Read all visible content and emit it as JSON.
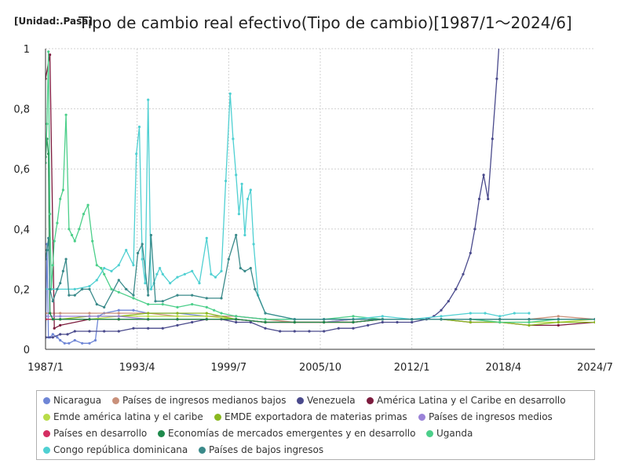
{
  "chart_data": {
    "type": "line",
    "unit_label": "[Unidad:.Pasa]",
    "title": "Tipo de cambio real efectivo(Tipo de cambio)[1987/1～2024/6]",
    "xlabel": "",
    "ylabel": "",
    "x_range": [
      1987.0,
      2024.5
    ],
    "ylim": [
      0,
      1
    ],
    "x_tick_labels": [
      "1987/1",
      "1993/4",
      "1999/7",
      "2005/10",
      "2012/1",
      "2018/4",
      "2024/7"
    ],
    "y_tick_labels": [
      "0",
      "0,2",
      "0,4",
      "0,6",
      "0,8",
      "1"
    ],
    "grid": true,
    "legend_position": "bottom",
    "series": [
      {
        "name": "Nicaragua",
        "color": "#6f86d6",
        "x": [
          1987.0,
          1987.1,
          1987.2,
          1987.3,
          1987.5,
          1987.8,
          1988.0,
          1988.3,
          1988.6,
          1989.0,
          1989.5,
          1990.0,
          1990.4,
          1990.6,
          1991.0,
          1992.0,
          1993.0,
          1994.0,
          1996.0,
          1998.0,
          2000.0,
          2002.0,
          2004.0,
          2006.0,
          2008.0,
          2010.0,
          2012.0,
          2014.0,
          2016.0,
          2018.0,
          2020.0,
          2022.0,
          2024.5
        ],
        "y": [
          0.04,
          0.35,
          0.04,
          0.04,
          0.05,
          0.04,
          0.03,
          0.02,
          0.02,
          0.03,
          0.02,
          0.02,
          0.03,
          0.11,
          0.12,
          0.13,
          0.13,
          0.12,
          0.12,
          0.11,
          0.11,
          0.1,
          0.1,
          0.1,
          0.1,
          0.1,
          0.1,
          0.1,
          0.1,
          0.1,
          0.1,
          0.1,
          0.1
        ]
      },
      {
        "name": "Países de ingresos medianos bajos",
        "color": "#c9907a",
        "x": [
          1987.0,
          1988.0,
          1990.0,
          1992.0,
          1994.0,
          1996.0,
          1998.0,
          2000.0,
          2002.0,
          2004.0,
          2006.0,
          2008.0,
          2010.0,
          2012.0,
          2014.0,
          2016.0,
          2018.0,
          2020.0,
          2022.0,
          2024.5
        ],
        "y": [
          0.12,
          0.12,
          0.12,
          0.12,
          0.12,
          0.11,
          0.11,
          0.11,
          0.1,
          0.09,
          0.09,
          0.09,
          0.1,
          0.1,
          0.1,
          0.1,
          0.1,
          0.1,
          0.11,
          0.1
        ]
      },
      {
        "name": "Venezuela",
        "color": "#4a4a8c",
        "x": [
          1987.0,
          1987.5,
          1988.0,
          1988.5,
          1989.0,
          1990.0,
          1991.0,
          1992.0,
          1993.0,
          1994.0,
          1995.0,
          1996.0,
          1997.0,
          1998.0,
          1999.0,
          2000.0,
          2001.0,
          2002.0,
          2003.0,
          2004.0,
          2005.0,
          2006.0,
          2007.0,
          2008.0,
          2009.0,
          2010.0,
          2011.0,
          2012.0,
          2013.0,
          2013.5,
          2014.0,
          2014.5,
          2015.0,
          2015.5,
          2016.0,
          2016.3,
          2016.6,
          2016.9,
          2017.2,
          2017.5,
          2017.8,
          2018.0
        ],
        "y": [
          0.04,
          0.04,
          0.05,
          0.05,
          0.06,
          0.06,
          0.06,
          0.06,
          0.07,
          0.07,
          0.07,
          0.08,
          0.09,
          0.1,
          0.1,
          0.09,
          0.09,
          0.07,
          0.06,
          0.06,
          0.06,
          0.06,
          0.07,
          0.07,
          0.08,
          0.09,
          0.09,
          0.09,
          0.1,
          0.11,
          0.13,
          0.16,
          0.2,
          0.25,
          0.32,
          0.4,
          0.5,
          0.58,
          0.5,
          0.7,
          0.9,
          1.05
        ]
      },
      {
        "name": "América Latina y el Caribe en desarrollo",
        "color": "#7c1b3d",
        "x": [
          1987.0,
          1987.3,
          1987.6,
          1988.0,
          1990.0,
          1992.0,
          1994.0,
          1996.0,
          1998.0,
          2000.0,
          2002.0,
          2004.0,
          2006.0,
          2008.0,
          2010.0,
          2012.0,
          2014.0,
          2016.0,
          2018.0,
          2020.0,
          2022.0,
          2024.5
        ],
        "y": [
          0.9,
          0.98,
          0.07,
          0.08,
          0.1,
          0.1,
          0.1,
          0.1,
          0.1,
          0.1,
          0.09,
          0.09,
          0.09,
          0.09,
          0.1,
          0.1,
          0.1,
          0.09,
          0.09,
          0.08,
          0.08,
          0.09
        ]
      },
      {
        "name": "Emde américa latina y el caribe",
        "color": "#b8dc48",
        "x": [
          1987.0,
          1988.0,
          1990.0,
          1992.0,
          1994.0,
          1996.0,
          1998.0,
          2000.0,
          2002.0,
          2004.0,
          2006.0,
          2008.0,
          2010.0,
          2012.0,
          2014.0,
          2016.0,
          2018.0,
          2020.0,
          2022.0,
          2024.5
        ],
        "y": [
          0.1,
          0.1,
          0.1,
          0.11,
          0.11,
          0.11,
          0.11,
          0.1,
          0.09,
          0.09,
          0.09,
          0.09,
          0.1,
          0.1,
          0.1,
          0.1,
          0.09,
          0.09,
          0.09,
          0.1
        ]
      },
      {
        "name": "EMDE exportadora de materias primas",
        "color": "#8ab820",
        "x": [
          1987.0,
          1988.0,
          1990.0,
          1992.0,
          1994.0,
          1996.0,
          1998.0,
          2000.0,
          2002.0,
          2004.0,
          2006.0,
          2008.0,
          2010.0,
          2012.0,
          2014.0,
          2016.0,
          2018.0,
          2020.0,
          2022.0,
          2024.5
        ],
        "y": [
          0.1,
          0.1,
          0.11,
          0.11,
          0.12,
          0.12,
          0.12,
          0.1,
          0.09,
          0.09,
          0.09,
          0.1,
          0.1,
          0.1,
          0.1,
          0.09,
          0.09,
          0.08,
          0.09,
          0.09
        ]
      },
      {
        "name": "Países de ingresos medios",
        "color": "#9a82d8",
        "x": [
          1987.0,
          1988.0,
          1990.0,
          1992.0,
          1994.0,
          1996.0,
          1998.0,
          2000.0,
          2002.0,
          2004.0,
          2006.0,
          2008.0,
          2010.0,
          2012.0,
          2014.0,
          2016.0,
          2018.0,
          2020.0,
          2022.0,
          2024.5
        ],
        "y": [
          0.11,
          0.11,
          0.11,
          0.11,
          0.1,
          0.1,
          0.1,
          0.1,
          0.09,
          0.09,
          0.09,
          0.1,
          0.1,
          0.1,
          0.1,
          0.1,
          0.1,
          0.1,
          0.1,
          0.1
        ]
      },
      {
        "name": "Países en desarrollo",
        "color": "#d42e62",
        "x": [
          1987.0,
          1988.0,
          1990.0,
          1992.0,
          1994.0,
          1996.0,
          1998.0,
          2000.0,
          2002.0,
          2004.0,
          2006.0,
          2008.0,
          2010.0,
          2012.0,
          2014.0,
          2016.0,
          2018.0,
          2020.0,
          2022.0,
          2024.5
        ],
        "y": [
          0.1,
          0.1,
          0.1,
          0.1,
          0.1,
          0.1,
          0.1,
          0.1,
          0.09,
          0.09,
          0.09,
          0.09,
          0.1,
          0.1,
          0.1,
          0.1,
          0.1,
          0.1,
          0.1,
          0.1
        ]
      },
      {
        "name": "Economías de mercados emergentes y en desarrollo",
        "color": "#1f8a4c",
        "x": [
          1987.0,
          1987.1,
          1987.2,
          1987.3,
          1987.5,
          1988.0,
          1990.0,
          1992.0,
          1994.0,
          1996.0,
          1998.0,
          2000.0,
          2002.0,
          2004.0,
          2006.0,
          2008.0,
          2010.0,
          2012.0,
          2014.0,
          2016.0,
          2018.0,
          2020.0,
          2022.0,
          2024.5
        ],
        "y": [
          0.64,
          0.7,
          0.65,
          0.12,
          0.1,
          0.1,
          0.1,
          0.1,
          0.1,
          0.1,
          0.1,
          0.1,
          0.09,
          0.09,
          0.09,
          0.09,
          0.1,
          0.1,
          0.1,
          0.1,
          0.1,
          0.1,
          0.1,
          0.1
        ]
      },
      {
        "name": "Uganda",
        "color": "#4ccf8a",
        "x": [
          1987.0,
          1987.1,
          1987.2,
          1987.3,
          1987.4,
          1987.5,
          1987.6,
          1987.8,
          1988.0,
          1988.2,
          1988.4,
          1988.6,
          1988.8,
          1989.0,
          1989.3,
          1989.6,
          1989.9,
          1990.2,
          1990.5,
          1990.8,
          1991.0,
          1991.5,
          1992.0,
          1993.0,
          1994.0,
          1995.0,
          1996.0,
          1997.0,
          1998.0,
          1998.5,
          1999.0,
          2000.0,
          2002.0,
          2004.0,
          2006.0,
          2008.0,
          2010.0,
          2012.0,
          2014.0,
          2016.0,
          2018.0,
          2020.0,
          2022.0,
          2024.5
        ],
        "y": [
          0.62,
          0.75,
          0.99,
          0.45,
          0.2,
          0.28,
          0.36,
          0.42,
          0.5,
          0.53,
          0.78,
          0.4,
          0.38,
          0.36,
          0.4,
          0.45,
          0.48,
          0.36,
          0.28,
          0.27,
          0.25,
          0.2,
          0.19,
          0.17,
          0.15,
          0.15,
          0.14,
          0.15,
          0.14,
          0.13,
          0.12,
          0.11,
          0.1,
          0.1,
          0.1,
          0.11,
          0.1,
          0.1,
          0.1,
          0.1,
          0.09,
          0.09,
          0.1,
          0.1
        ]
      },
      {
        "name": "Congo república dominicana",
        "color": "#4fd0d2",
        "x": [
          1987.0,
          1989.0,
          1990.0,
          1990.5,
          1991.0,
          1991.5,
          1992.0,
          1992.5,
          1993.0,
          1993.2,
          1993.4,
          1993.6,
          1993.8,
          1994.0,
          1994.2,
          1994.4,
          1994.6,
          1994.8,
          1995.0,
          1995.5,
          1996.0,
          1996.5,
          1997.0,
          1997.5,
          1998.0,
          1998.3,
          1998.6,
          1999.0,
          1999.3,
          1999.6,
          1999.8,
          2000.0,
          2000.2,
          2000.4,
          2000.6,
          2000.8,
          2001.0,
          2001.2,
          2001.5,
          2002.0,
          2004.0,
          2006.0,
          2008.0,
          2010.0,
          2012.0,
          2014.0,
          2016.0,
          2017.0,
          2018.0,
          2019.0,
          2020.0
        ],
        "y": [
          0.2,
          0.2,
          0.21,
          0.23,
          0.27,
          0.26,
          0.28,
          0.33,
          0.28,
          0.65,
          0.74,
          0.3,
          0.22,
          0.83,
          0.2,
          0.22,
          0.25,
          0.27,
          0.25,
          0.22,
          0.24,
          0.25,
          0.26,
          0.22,
          0.37,
          0.25,
          0.24,
          0.26,
          0.56,
          0.85,
          0.7,
          0.58,
          0.45,
          0.55,
          0.38,
          0.5,
          0.53,
          0.35,
          0.18,
          0.12,
          0.1,
          0.1,
          0.1,
          0.11,
          0.1,
          0.11,
          0.12,
          0.12,
          0.11,
          0.12,
          0.12
        ]
      },
      {
        "name": "Países de bajos ingresos",
        "color": "#3a8a8a",
        "x": [
          1987.0,
          1987.1,
          1987.2,
          1987.3,
          1987.5,
          1987.8,
          1988.0,
          1988.2,
          1988.4,
          1988.6,
          1989.0,
          1989.5,
          1990.0,
          1990.5,
          1991.0,
          1992.0,
          1992.5,
          1993.0,
          1993.3,
          1993.6,
          1994.0,
          1994.2,
          1994.5,
          1995.0,
          1996.0,
          1997.0,
          1998.0,
          1999.0,
          1999.5,
          2000.0,
          2000.3,
          2000.6,
          2001.0,
          2001.3,
          2002.0,
          2004.0,
          2006.0,
          2008.0,
          2010.0,
          2012.0,
          2014.0,
          2016.0,
          2018.0,
          2020.0,
          2022.0,
          2024.5
        ],
        "y": [
          0.3,
          0.33,
          0.37,
          0.2,
          0.16,
          0.2,
          0.22,
          0.26,
          0.3,
          0.18,
          0.18,
          0.2,
          0.2,
          0.15,
          0.14,
          0.23,
          0.2,
          0.18,
          0.32,
          0.35,
          0.18,
          0.38,
          0.16,
          0.16,
          0.18,
          0.18,
          0.17,
          0.17,
          0.3,
          0.38,
          0.27,
          0.26,
          0.27,
          0.2,
          0.12,
          0.1,
          0.1,
          0.1,
          0.1,
          0.1,
          0.1,
          0.1,
          0.1,
          0.1,
          0.1,
          0.1
        ]
      }
    ]
  }
}
